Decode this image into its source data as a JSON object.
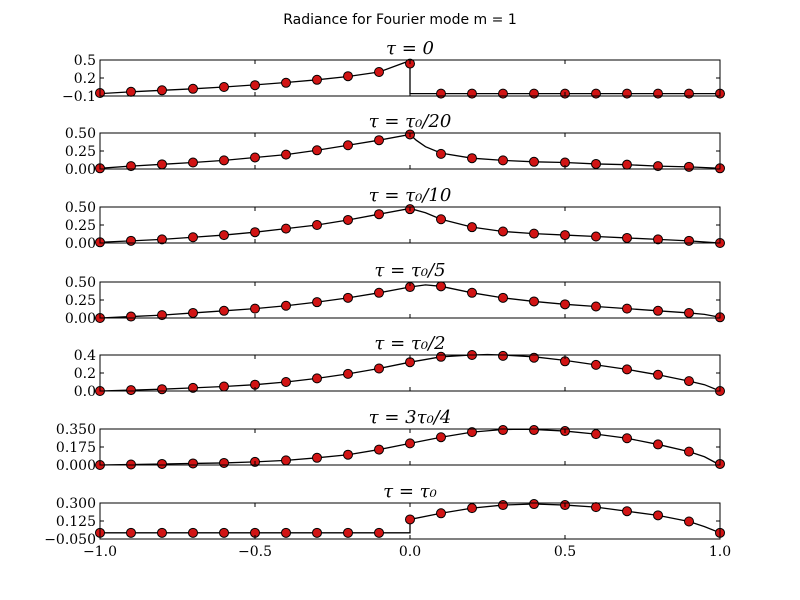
{
  "figure": {
    "title": "Radiance for Fourier mode m = 1"
  },
  "chart_data": [
    {
      "type": "line",
      "title": "τ = 0",
      "xlim": [
        -1.0,
        1.0
      ],
      "ylim": [
        -0.1,
        0.5
      ],
      "yticks": [
        -0.1,
        0.2,
        0.5
      ],
      "ytick_labels": [
        "−0.1",
        "0.2",
        "0.5"
      ],
      "x_markers": [
        -1.0,
        -0.9,
        -0.8,
        -0.7,
        -0.6,
        -0.5,
        -0.4,
        -0.3,
        -0.2,
        -0.1,
        0.0,
        0.1,
        0.2,
        0.3,
        0.4,
        0.5,
        0.6,
        0.7,
        0.8,
        0.9,
        1.0
      ],
      "y_markers": [
        -0.05,
        -0.03,
        -0.005,
        0.02,
        0.05,
        0.08,
        0.12,
        0.17,
        0.23,
        0.3,
        0.44,
        -0.06,
        -0.06,
        -0.06,
        -0.06,
        -0.06,
        -0.06,
        -0.06,
        -0.06,
        -0.06,
        -0.06
      ],
      "curve_x": [
        -1.0,
        -0.9,
        -0.8,
        -0.7,
        -0.6,
        -0.5,
        -0.4,
        -0.3,
        -0.2,
        -0.1,
        0.0,
        0.0,
        0.0,
        0.1,
        0.2,
        0.3,
        0.4,
        0.5,
        0.6,
        0.7,
        0.8,
        0.9,
        1.0
      ],
      "curve_y": [
        -0.06,
        -0.03,
        -0.005,
        0.02,
        0.05,
        0.085,
        0.125,
        0.17,
        0.225,
        0.3,
        0.49,
        0.49,
        -0.06,
        -0.06,
        -0.06,
        -0.06,
        -0.06,
        -0.06,
        -0.06,
        -0.06,
        -0.06,
        -0.06,
        -0.06
      ]
    },
    {
      "type": "line",
      "title": "τ = τ₀/20",
      "xlim": [
        -1.0,
        1.0
      ],
      "ylim": [
        0.0,
        0.5
      ],
      "yticks": [
        0.0,
        0.25,
        0.5
      ],
      "ytick_labels": [
        "0.00",
        "0.25",
        "0.50"
      ],
      "x_markers": [
        -1.0,
        -0.9,
        -0.8,
        -0.7,
        -0.6,
        -0.5,
        -0.4,
        -0.3,
        -0.2,
        -0.1,
        0.0,
        0.1,
        0.2,
        0.3,
        0.4,
        0.5,
        0.6,
        0.7,
        0.8,
        0.9,
        1.0
      ],
      "y_markers": [
        0.01,
        0.04,
        0.065,
        0.09,
        0.12,
        0.16,
        0.2,
        0.26,
        0.33,
        0.4,
        0.48,
        0.21,
        0.15,
        0.12,
        0.1,
        0.09,
        0.07,
        0.06,
        0.04,
        0.03,
        0.01
      ],
      "curve_x": [
        -1.0,
        -0.9,
        -0.8,
        -0.7,
        -0.6,
        -0.5,
        -0.4,
        -0.3,
        -0.2,
        -0.1,
        0.0,
        0.02,
        0.05,
        0.1,
        0.2,
        0.3,
        0.4,
        0.5,
        0.6,
        0.7,
        0.8,
        0.9,
        1.0
      ],
      "curve_y": [
        0.01,
        0.04,
        0.065,
        0.09,
        0.12,
        0.16,
        0.2,
        0.26,
        0.33,
        0.4,
        0.48,
        0.4,
        0.31,
        0.22,
        0.15,
        0.12,
        0.1,
        0.09,
        0.07,
        0.06,
        0.04,
        0.03,
        0.01
      ]
    },
    {
      "type": "line",
      "title": "τ = τ₀/10",
      "xlim": [
        -1.0,
        1.0
      ],
      "ylim": [
        0.0,
        0.5
      ],
      "yticks": [
        0.0,
        0.25,
        0.5
      ],
      "ytick_labels": [
        "0.00",
        "0.25",
        "0.50"
      ],
      "x_markers": [
        -1.0,
        -0.9,
        -0.8,
        -0.7,
        -0.6,
        -0.5,
        -0.4,
        -0.3,
        -0.2,
        -0.1,
        0.0,
        0.1,
        0.2,
        0.3,
        0.4,
        0.5,
        0.6,
        0.7,
        0.8,
        0.9,
        1.0
      ],
      "y_markers": [
        0.01,
        0.03,
        0.05,
        0.08,
        0.11,
        0.15,
        0.2,
        0.25,
        0.32,
        0.4,
        0.47,
        0.33,
        0.22,
        0.16,
        0.13,
        0.11,
        0.09,
        0.07,
        0.05,
        0.03,
        0.0
      ],
      "curve_x": [
        -1.0,
        -0.9,
        -0.8,
        -0.7,
        -0.6,
        -0.5,
        -0.4,
        -0.3,
        -0.2,
        -0.1,
        0.0,
        0.05,
        0.1,
        0.2,
        0.3,
        0.4,
        0.5,
        0.6,
        0.7,
        0.8,
        0.9,
        1.0
      ],
      "curve_y": [
        0.01,
        0.03,
        0.05,
        0.08,
        0.11,
        0.15,
        0.2,
        0.25,
        0.32,
        0.4,
        0.48,
        0.42,
        0.33,
        0.22,
        0.16,
        0.13,
        0.11,
        0.09,
        0.07,
        0.05,
        0.03,
        0.0
      ]
    },
    {
      "type": "line",
      "title": "τ = τ₀/5",
      "xlim": [
        -1.0,
        1.0
      ],
      "ylim": [
        0.0,
        0.5
      ],
      "yticks": [
        0.0,
        0.25,
        0.5
      ],
      "ytick_labels": [
        "0.00",
        "0.25",
        "0.50"
      ],
      "x_markers": [
        -1.0,
        -0.9,
        -0.8,
        -0.7,
        -0.6,
        -0.5,
        -0.4,
        -0.3,
        -0.2,
        -0.1,
        0.0,
        0.1,
        0.2,
        0.3,
        0.4,
        0.5,
        0.6,
        0.7,
        0.8,
        0.9,
        1.0
      ],
      "y_markers": [
        0.0,
        0.02,
        0.04,
        0.07,
        0.1,
        0.13,
        0.17,
        0.22,
        0.28,
        0.35,
        0.43,
        0.44,
        0.35,
        0.28,
        0.23,
        0.19,
        0.16,
        0.13,
        0.1,
        0.07,
        0.01
      ],
      "curve_x": [
        -1.0,
        -0.9,
        -0.8,
        -0.7,
        -0.6,
        -0.5,
        -0.4,
        -0.3,
        -0.2,
        -0.1,
        0.0,
        0.05,
        0.1,
        0.2,
        0.3,
        0.4,
        0.5,
        0.6,
        0.7,
        0.8,
        0.9,
        0.95,
        1.0
      ],
      "curve_y": [
        0.0,
        0.02,
        0.04,
        0.07,
        0.1,
        0.13,
        0.17,
        0.22,
        0.28,
        0.35,
        0.43,
        0.46,
        0.44,
        0.35,
        0.28,
        0.23,
        0.19,
        0.16,
        0.13,
        0.1,
        0.07,
        0.05,
        0.01
      ]
    },
    {
      "type": "line",
      "title": "τ = τ₀/2",
      "xlim": [
        -1.0,
        1.0
      ],
      "ylim": [
        0.0,
        0.4
      ],
      "yticks": [
        0.0,
        0.2,
        0.4
      ],
      "ytick_labels": [
        "0.0",
        "0.2",
        "0.4"
      ],
      "x_markers": [
        -1.0,
        -0.9,
        -0.8,
        -0.7,
        -0.6,
        -0.5,
        -0.4,
        -0.3,
        -0.2,
        -0.1,
        0.0,
        0.1,
        0.2,
        0.3,
        0.4,
        0.5,
        0.6,
        0.7,
        0.8,
        0.9,
        1.0
      ],
      "y_markers": [
        0.0,
        0.01,
        0.02,
        0.035,
        0.05,
        0.07,
        0.1,
        0.14,
        0.19,
        0.25,
        0.32,
        0.38,
        0.4,
        0.39,
        0.37,
        0.33,
        0.29,
        0.24,
        0.18,
        0.11,
        0.0
      ],
      "curve_x": [
        -1.0,
        -0.9,
        -0.8,
        -0.7,
        -0.6,
        -0.5,
        -0.4,
        -0.3,
        -0.2,
        -0.1,
        0.0,
        0.1,
        0.2,
        0.25,
        0.3,
        0.4,
        0.5,
        0.6,
        0.7,
        0.8,
        0.9,
        0.95,
        1.0
      ],
      "curve_y": [
        0.0,
        0.01,
        0.02,
        0.035,
        0.05,
        0.07,
        0.1,
        0.14,
        0.19,
        0.25,
        0.32,
        0.38,
        0.4,
        0.405,
        0.4,
        0.38,
        0.34,
        0.29,
        0.24,
        0.18,
        0.11,
        0.07,
        0.0
      ]
    },
    {
      "type": "line",
      "title": "τ = 3τ₀/4",
      "xlim": [
        -1.0,
        1.0
      ],
      "ylim": [
        0.0,
        0.35
      ],
      "yticks": [
        0.0,
        0.175,
        0.35
      ],
      "ytick_labels": [
        "0.000",
        "0.175",
        "0.350"
      ],
      "x_markers": [
        -1.0,
        -0.9,
        -0.8,
        -0.7,
        -0.6,
        -0.5,
        -0.4,
        -0.3,
        -0.2,
        -0.1,
        0.0,
        0.1,
        0.2,
        0.3,
        0.4,
        0.5,
        0.6,
        0.7,
        0.8,
        0.9,
        1.0
      ],
      "y_markers": [
        0.0,
        0.005,
        0.01,
        0.015,
        0.02,
        0.03,
        0.045,
        0.07,
        0.1,
        0.15,
        0.21,
        0.27,
        0.32,
        0.34,
        0.34,
        0.33,
        0.3,
        0.26,
        0.2,
        0.13,
        0.01
      ],
      "curve_x": [
        -1.0,
        -0.9,
        -0.8,
        -0.7,
        -0.6,
        -0.5,
        -0.4,
        -0.3,
        -0.2,
        -0.1,
        0.0,
        0.1,
        0.2,
        0.3,
        0.35,
        0.4,
        0.5,
        0.6,
        0.7,
        0.8,
        0.9,
        0.95,
        1.0
      ],
      "curve_y": [
        0.0,
        0.005,
        0.01,
        0.015,
        0.02,
        0.03,
        0.045,
        0.07,
        0.1,
        0.15,
        0.21,
        0.27,
        0.32,
        0.345,
        0.348,
        0.345,
        0.33,
        0.3,
        0.26,
        0.2,
        0.13,
        0.08,
        0.0
      ]
    },
    {
      "type": "line",
      "title": "τ = τ₀",
      "xlim": [
        -1.0,
        1.0
      ],
      "ylim": [
        -0.05,
        0.3
      ],
      "yticks": [
        -0.05,
        0.125,
        0.3
      ],
      "ytick_labels": [
        "−0.050",
        "0.125",
        "0.300"
      ],
      "x_markers": [
        -1.0,
        -0.9,
        -0.8,
        -0.7,
        -0.6,
        -0.5,
        -0.4,
        -0.3,
        -0.2,
        -0.1,
        0.0,
        0.1,
        0.2,
        0.3,
        0.4,
        0.5,
        0.6,
        0.7,
        0.8,
        0.9,
        1.0
      ],
      "y_markers": [
        0.01,
        0.01,
        0.01,
        0.01,
        0.01,
        0.01,
        0.01,
        0.01,
        0.01,
        0.01,
        0.14,
        0.2,
        0.25,
        0.28,
        0.29,
        0.28,
        0.26,
        0.22,
        0.18,
        0.12,
        0.01
      ],
      "curve_x": [
        -1.0,
        -0.9,
        -0.8,
        -0.7,
        -0.6,
        -0.5,
        -0.4,
        -0.3,
        -0.2,
        -0.1,
        0.0,
        0.0,
        0.1,
        0.2,
        0.3,
        0.4,
        0.5,
        0.6,
        0.7,
        0.8,
        0.9,
        0.95,
        1.0
      ],
      "curve_y": [
        0.01,
        0.01,
        0.01,
        0.01,
        0.01,
        0.01,
        0.01,
        0.01,
        0.01,
        0.01,
        0.01,
        0.14,
        0.2,
        0.25,
        0.28,
        0.29,
        0.28,
        0.26,
        0.22,
        0.18,
        0.12,
        0.07,
        0.01
      ],
      "xticks": [
        -1.0,
        -0.5,
        0.0,
        0.5,
        1.0
      ],
      "xtick_labels": [
        "−1.0",
        "−0.5",
        "0.0",
        "0.5",
        "1.0"
      ]
    }
  ]
}
